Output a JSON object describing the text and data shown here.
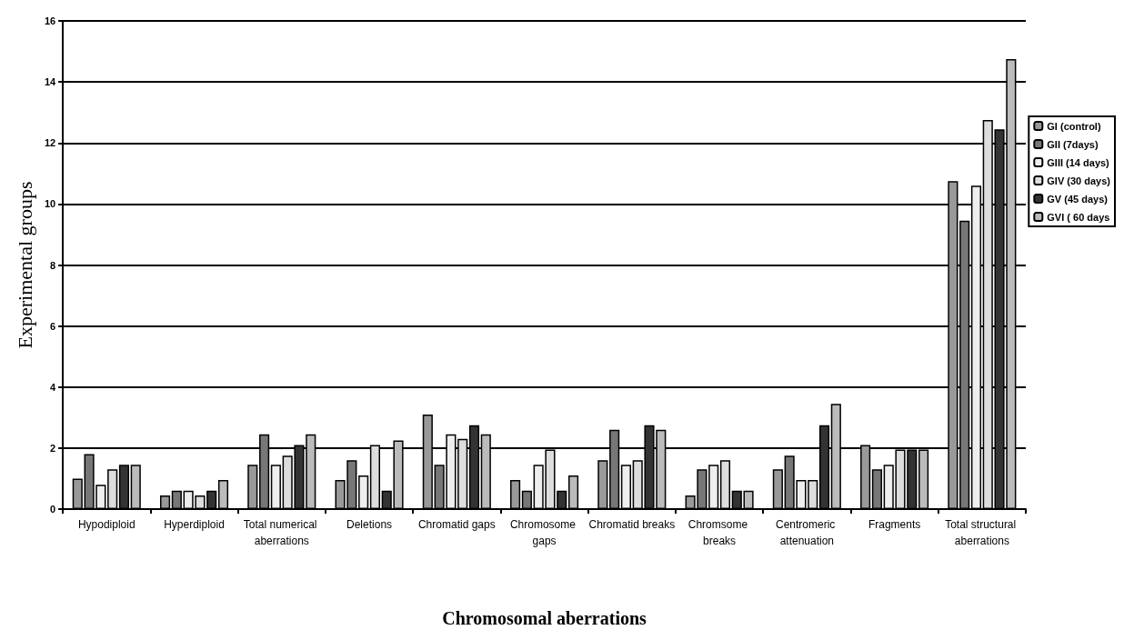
{
  "chart_data": {
    "type": "bar",
    "xlabel": "Chromosomal aberrations",
    "ylabel": "Experimental groups",
    "categories": [
      "Hypodiploid",
      "Hyperdiploid",
      "Total numerical aberrations",
      "Deletions",
      "Chromatid gaps",
      "Chromosome gaps",
      "Chromatid breaks",
      "Chromsome breaks",
      "Centromeric attenuation",
      "Fragments",
      "Total structural aberrations"
    ],
    "series": [
      {
        "name": "GI (control)",
        "color": "#999999",
        "values": [
          1.0,
          0.45,
          1.45,
          0.95,
          3.1,
          0.95,
          1.6,
          0.45,
          1.3,
          2.1,
          10.75
        ]
      },
      {
        "name": "GII (7days)",
        "color": "#777777",
        "values": [
          1.8,
          0.6,
          2.45,
          1.6,
          1.45,
          0.6,
          2.6,
          1.3,
          1.75,
          1.3,
          9.45
        ]
      },
      {
        "name": "GIII (14 days)",
        "color": "#eeeeee",
        "values": [
          0.8,
          0.6,
          1.45,
          1.1,
          2.45,
          1.45,
          1.45,
          1.45,
          0.95,
          1.45,
          10.6
        ]
      },
      {
        "name": "GIV (30 days)",
        "color": "#dddddd",
        "values": [
          1.3,
          0.45,
          1.75,
          2.1,
          2.3,
          1.95,
          1.6,
          1.6,
          0.95,
          1.95,
          12.75
        ]
      },
      {
        "name": "GV (45 days)",
        "color": "#333333",
        "values": [
          1.45,
          0.6,
          2.1,
          0.6,
          2.75,
          0.6,
          2.75,
          0.6,
          2.75,
          1.95,
          12.45
        ]
      },
      {
        "name": "GVI ( 60 days",
        "color": "#bbbbbb",
        "values": [
          1.45,
          0.95,
          2.45,
          2.25,
          2.45,
          1.1,
          2.6,
          0.6,
          3.45,
          1.95,
          14.75
        ]
      }
    ],
    "ylim": [
      0,
      16
    ],
    "yticks": [
      0,
      2,
      4,
      6,
      8,
      10,
      12,
      14,
      16
    ],
    "grid": "y",
    "legend": "right"
  }
}
